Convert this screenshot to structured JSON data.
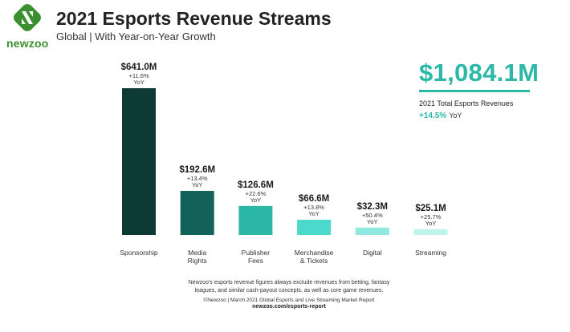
{
  "header": {
    "logo_text": "newzoo",
    "title": "2021 Esports Revenue Streams",
    "subtitle": "Global | With Year-on-Year Growth"
  },
  "total": {
    "value": "$1,084.1M",
    "label": "2021 Total Esports Revenues",
    "growth": "+14.5%",
    "growth_unit": "YoY"
  },
  "colors": {
    "accent": "#2bb8a7",
    "logo_green": "#3a8f2e"
  },
  "chart_data": {
    "type": "bar",
    "title": "2021 Esports Revenue Streams",
    "categories": [
      "Sponsorship",
      "Media Rights",
      "Publisher Fees",
      "Merchandise & Tickets",
      "Digital",
      "Streaming"
    ],
    "category_lines": [
      [
        "Sponsorship"
      ],
      [
        "Media",
        "Rights"
      ],
      [
        "Publisher",
        "Fees"
      ],
      [
        "Merchandise",
        "& Tickets"
      ],
      [
        "Digital"
      ],
      [
        "Streaming"
      ]
    ],
    "values": [
      641.0,
      192.6,
      126.6,
      66.6,
      32.3,
      25.1
    ],
    "value_labels": [
      "$641.0M",
      "$192.6M",
      "$126.6M",
      "$66.6M",
      "$32.3M",
      "$25.1M"
    ],
    "growth_labels": [
      "+11.6%",
      "+13.4%",
      "+22.6%",
      "+13.8%",
      "+50.4%",
      "+25.7%"
    ],
    "growth_unit": "YoY",
    "bar_colors": [
      "#0e3a36",
      "#136259",
      "#2bb8a7",
      "#4ad9cb",
      "#8fe9df",
      "#bff3ec"
    ],
    "ylim": [
      0,
      641.0
    ],
    "grid": false,
    "legend": "none"
  },
  "footer": {
    "note_line1": "Newzoo's esports revenue figures always exclude revenues from betting, fantasy",
    "note_line2": "leagues, and similar cash-payout concepts, as well as core game revenues.",
    "source": "©Newzoo | March 2021 Global Esports and Live Streaming Market Report",
    "url": "newzoo.com/esports-report"
  }
}
